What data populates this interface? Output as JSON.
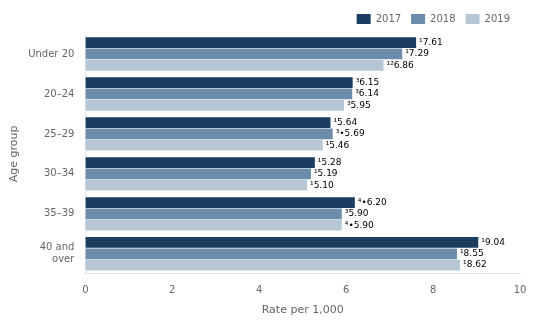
{
  "chart_data": {
    "type": "bar",
    "orientation": "horizontal",
    "xlabel": "Rate per 1,000",
    "ylabel": "Age group",
    "categories": [
      "Under 20",
      "20–24",
      "25–29",
      "30–34",
      "35–39",
      "40 and\nover"
    ],
    "series": [
      {
        "name": "2017",
        "color": "#1b3d5f",
        "values": [
          7.61,
          6.15,
          5.64,
          5.28,
          6.2,
          9.04
        ],
        "value_labels": [
          "¹7.61",
          "³6.15",
          "¹5.64",
          "¹5.28",
          "⁴•6.20",
          "¹9.04"
        ]
      },
      {
        "name": "2018",
        "color": "#6b8caa",
        "values": [
          7.29,
          6.14,
          5.69,
          5.19,
          5.9,
          8.55
        ],
        "value_labels": [
          "¹7.29",
          "³6.14",
          "³•5.69",
          "¹5.19",
          "³5.90",
          "¹8.55"
        ]
      },
      {
        "name": "2019",
        "color": "#b5c7d5",
        "values": [
          6.86,
          5.95,
          5.46,
          5.1,
          5.9,
          8.62
        ],
        "value_labels": [
          "¹²6.86",
          "³5.95",
          "¹5.46",
          "¹5.10",
          "⁴•5.90",
          "¹8.62"
        ]
      }
    ],
    "xlim": [
      0,
      10
    ],
    "xticks": [
      0,
      2,
      4,
      6,
      8,
      10
    ],
    "grid": false,
    "legend": "upper right",
    "data_labels": true
  }
}
